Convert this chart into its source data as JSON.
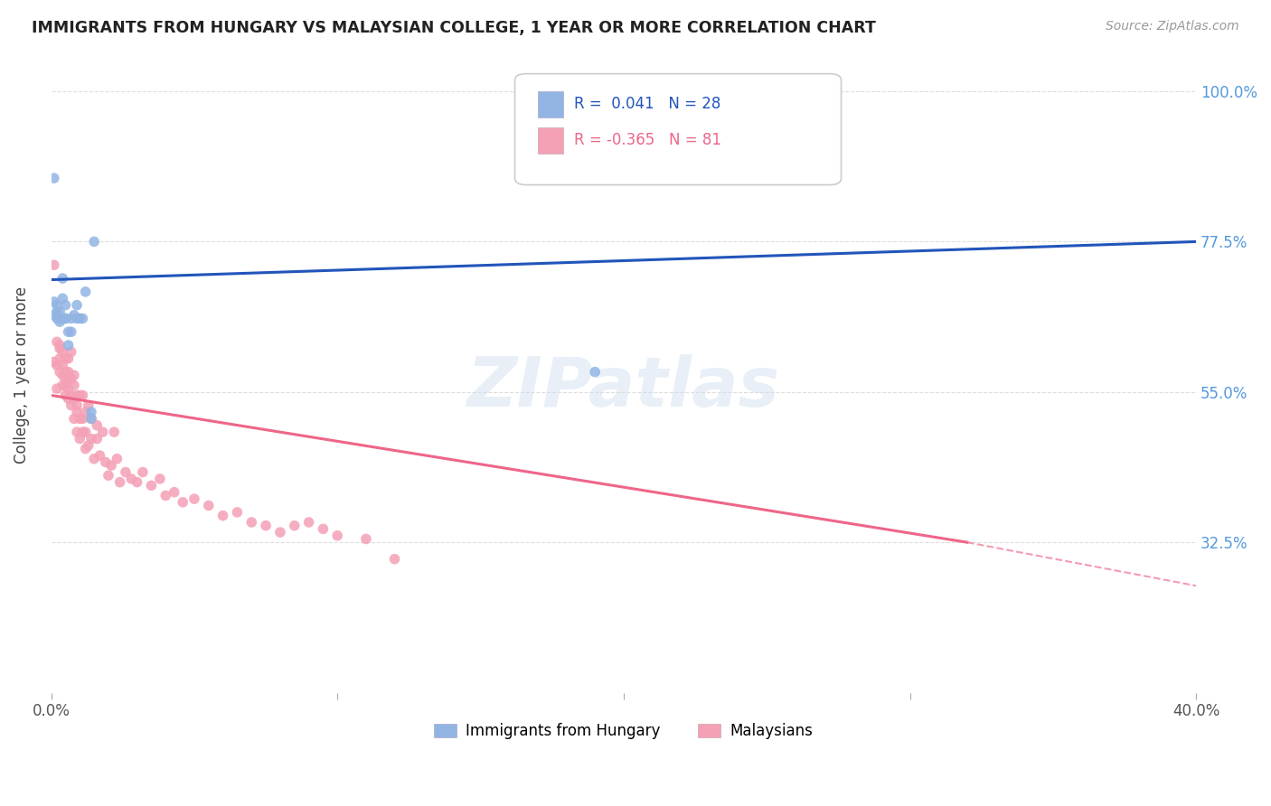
{
  "title": "IMMIGRANTS FROM HUNGARY VS MALAYSIAN COLLEGE, 1 YEAR OR MORE CORRELATION CHART",
  "source": "Source: ZipAtlas.com",
  "ylabel": "College, 1 year or more",
  "ytick_labels": [
    "100.0%",
    "77.5%",
    "55.0%",
    "32.5%"
  ],
  "ytick_values": [
    1.0,
    0.775,
    0.55,
    0.325
  ],
  "legend_blue_r": "R =  0.041",
  "legend_blue_n": "N = 28",
  "legend_pink_r": "R = -0.365",
  "legend_pink_n": "N = 81",
  "legend_label_blue": "Immigrants from Hungary",
  "legend_label_pink": "Malaysians",
  "blue_color": "#92B4E3",
  "pink_color": "#F4A0B5",
  "blue_line_color": "#2255BB",
  "pink_line_color": "#EE6688",
  "blue_scatter": {
    "x": [
      0.001,
      0.001,
      0.002,
      0.002,
      0.002,
      0.003,
      0.003,
      0.003,
      0.004,
      0.004,
      0.005,
      0.005,
      0.005,
      0.006,
      0.006,
      0.007,
      0.007,
      0.008,
      0.009,
      0.009,
      0.01,
      0.011,
      0.012,
      0.014,
      0.014,
      0.015,
      0.19,
      0.001
    ],
    "y": [
      0.685,
      0.665,
      0.67,
      0.66,
      0.68,
      0.66,
      0.655,
      0.67,
      0.69,
      0.72,
      0.66,
      0.66,
      0.68,
      0.64,
      0.62,
      0.66,
      0.64,
      0.665,
      0.66,
      0.68,
      0.66,
      0.66,
      0.7,
      0.51,
      0.52,
      0.775,
      0.58,
      0.87
    ]
  },
  "pink_scatter": {
    "x": [
      0.001,
      0.002,
      0.002,
      0.002,
      0.003,
      0.003,
      0.003,
      0.003,
      0.004,
      0.004,
      0.004,
      0.004,
      0.005,
      0.005,
      0.005,
      0.005,
      0.005,
      0.006,
      0.006,
      0.006,
      0.006,
      0.006,
      0.007,
      0.007,
      0.007,
      0.007,
      0.008,
      0.008,
      0.008,
      0.008,
      0.009,
      0.009,
      0.009,
      0.009,
      0.01,
      0.01,
      0.01,
      0.011,
      0.011,
      0.011,
      0.012,
      0.012,
      0.012,
      0.013,
      0.013,
      0.014,
      0.014,
      0.015,
      0.016,
      0.016,
      0.017,
      0.018,
      0.019,
      0.02,
      0.021,
      0.022,
      0.023,
      0.024,
      0.026,
      0.028,
      0.03,
      0.032,
      0.035,
      0.038,
      0.04,
      0.043,
      0.046,
      0.05,
      0.055,
      0.06,
      0.065,
      0.07,
      0.075,
      0.08,
      0.085,
      0.09,
      0.095,
      0.1,
      0.11,
      0.12,
      0.001
    ],
    "y": [
      0.595,
      0.59,
      0.625,
      0.555,
      0.615,
      0.6,
      0.58,
      0.62,
      0.56,
      0.59,
      0.61,
      0.575,
      0.56,
      0.58,
      0.545,
      0.57,
      0.6,
      0.555,
      0.58,
      0.54,
      0.6,
      0.565,
      0.545,
      0.53,
      0.57,
      0.61,
      0.51,
      0.54,
      0.56,
      0.575,
      0.53,
      0.545,
      0.49,
      0.52,
      0.545,
      0.51,
      0.48,
      0.49,
      0.545,
      0.51,
      0.465,
      0.52,
      0.49,
      0.53,
      0.47,
      0.48,
      0.51,
      0.45,
      0.48,
      0.5,
      0.455,
      0.49,
      0.445,
      0.425,
      0.44,
      0.49,
      0.45,
      0.415,
      0.43,
      0.42,
      0.415,
      0.43,
      0.41,
      0.42,
      0.395,
      0.4,
      0.385,
      0.39,
      0.38,
      0.365,
      0.37,
      0.355,
      0.35,
      0.34,
      0.35,
      0.355,
      0.345,
      0.335,
      0.33,
      0.3,
      0.74
    ]
  },
  "blue_line": {
    "x0": 0.0,
    "x1": 0.4,
    "y0": 0.718,
    "y1": 0.775
  },
  "pink_line_solid": {
    "x0": 0.0,
    "x1": 0.32,
    "y0": 0.545,
    "y1": 0.325
  },
  "pink_line_dashed": {
    "x0": 0.32,
    "x1": 0.4,
    "y0": 0.325,
    "y1": 0.26
  },
  "xlim": [
    0.0,
    0.4
  ],
  "ylim": [
    0.1,
    1.05
  ],
  "xticks": [
    0.0,
    0.1,
    0.2,
    0.3,
    0.4
  ],
  "xtick_labels": [
    "0.0%",
    "",
    "",
    "",
    "40.0%"
  ],
  "watermark": "ZIPatlas",
  "background_color": "#FFFFFF",
  "grid_color": "#DDDDDD"
}
